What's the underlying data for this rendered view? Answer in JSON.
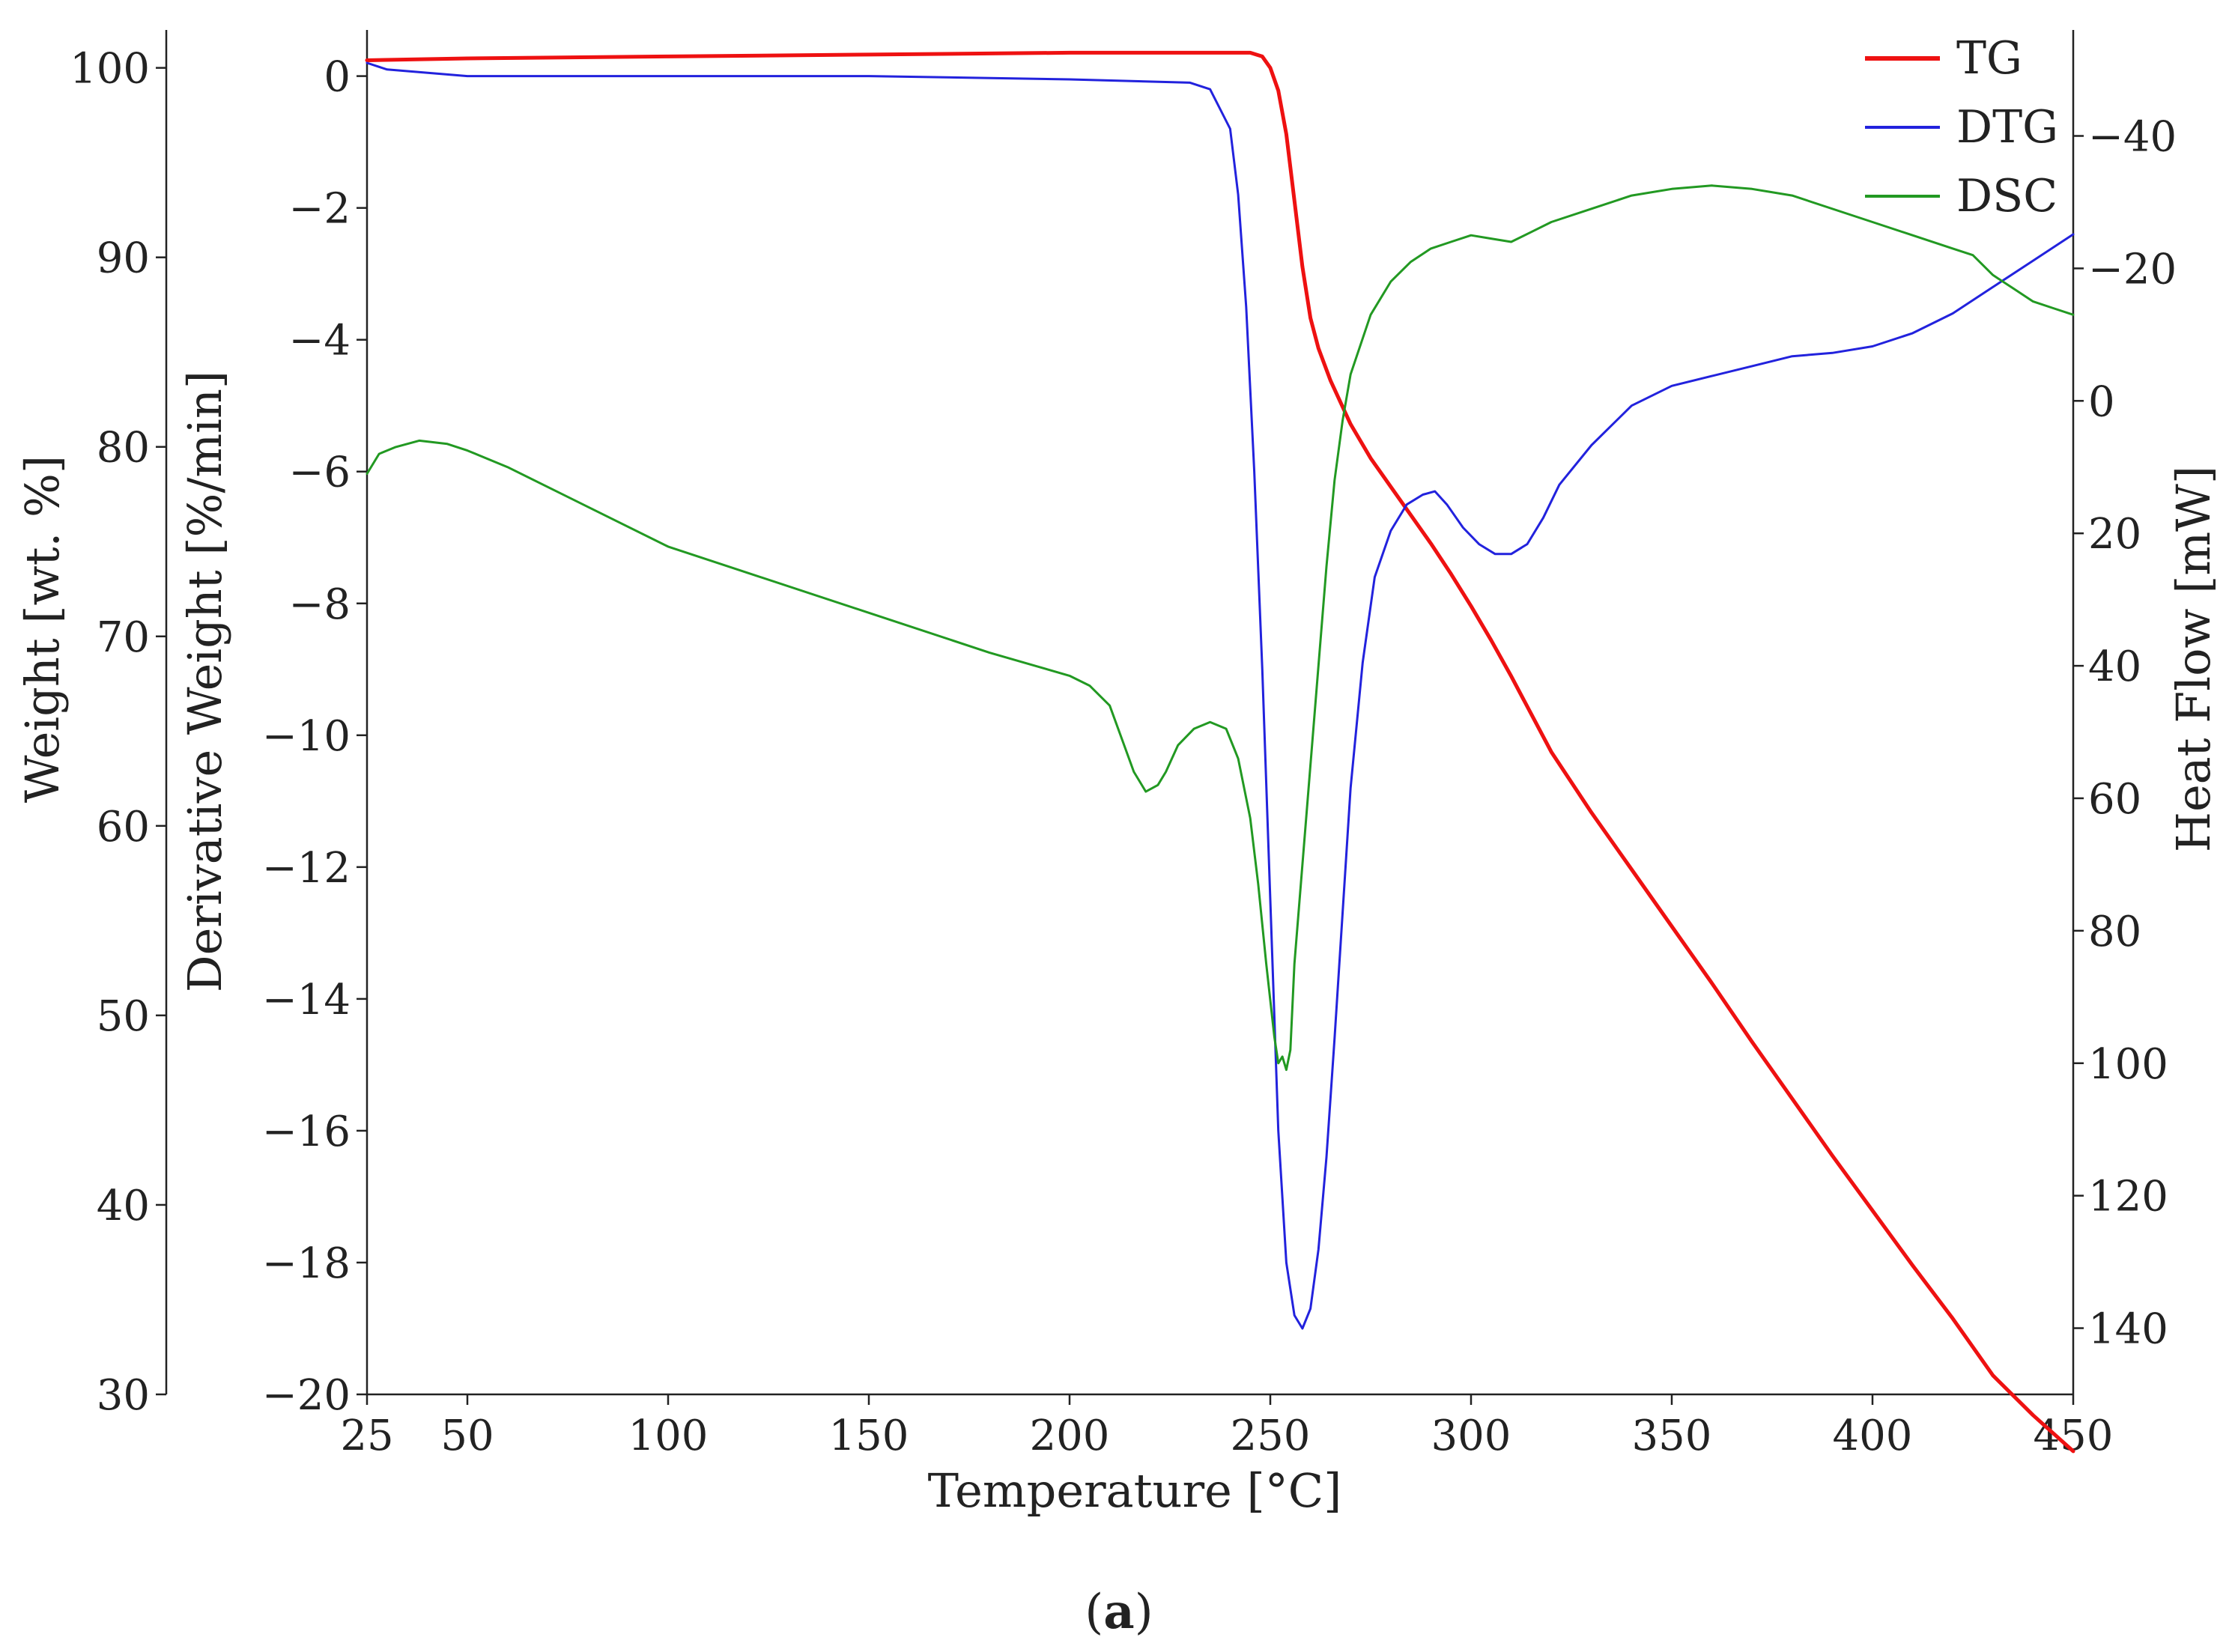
{
  "chart_data": {
    "type": "line",
    "title": "",
    "caption": {
      "open": "(",
      "letter": "a",
      "close": ")"
    },
    "xlabel": "Temperature [°C]",
    "xlim": [
      25,
      450
    ],
    "xticks": [
      25,
      50,
      100,
      150,
      200,
      250,
      300,
      350,
      400,
      450
    ],
    "axes": {
      "weight": {
        "label": "Weight [wt. %]",
        "range": [
          30,
          102
        ],
        "ticks": [
          30,
          40,
          50,
          60,
          70,
          80,
          90,
          100
        ]
      },
      "derivative": {
        "label": "Derivative Weight [%/min]",
        "range": [
          -20,
          0.7
        ],
        "ticks": [
          0,
          -2,
          -4,
          -6,
          -8,
          -10,
          -12,
          -14,
          -16,
          -18,
          -20
        ],
        "tick_labels": [
          "0",
          "−2",
          "−4",
          "−6",
          "−8",
          "−10",
          "−12",
          "−14",
          "−16",
          "−18",
          "−20"
        ]
      },
      "heatflow": {
        "label": "Heat Flow [mW]",
        "range": [
          -56,
          150
        ],
        "inverted": true,
        "ticks": [
          -40,
          -20,
          0,
          20,
          40,
          60,
          80,
          100,
          120,
          140
        ],
        "tick_labels": [
          "−40",
          "−20",
          "0",
          "20",
          "40",
          "60",
          "80",
          "100",
          "120",
          "140"
        ]
      }
    },
    "legend": {
      "position": "top-right"
    },
    "series": [
      {
        "name": "TG",
        "axis": "weight",
        "color": "#ee1111",
        "width": 5,
        "x": [
          25,
          50,
          100,
          150,
          200,
          240,
          245,
          248,
          250,
          252,
          254,
          256,
          258,
          260,
          262,
          265,
          270,
          275,
          280,
          285,
          290,
          295,
          300,
          305,
          310,
          320,
          330,
          340,
          350,
          360,
          370,
          380,
          390,
          400,
          410,
          420,
          430,
          440,
          450
        ],
        "y": [
          100.4,
          100.5,
          100.6,
          100.7,
          100.8,
          100.8,
          100.8,
          100.6,
          100.0,
          98.8,
          96.5,
          93.0,
          89.5,
          86.8,
          85.2,
          83.5,
          81.2,
          79.4,
          77.9,
          76.4,
          74.9,
          73.3,
          71.6,
          69.8,
          67.9,
          63.9,
          60.7,
          57.7,
          54.7,
          51.7,
          48.6,
          45.6,
          42.6,
          39.7,
          36.8,
          34.0,
          31.0,
          28.9,
          27.0
        ]
      },
      {
        "name": "DTG",
        "axis": "derivative",
        "color": "#2222dd",
        "width": 3,
        "x": [
          25,
          30,
          50,
          100,
          150,
          200,
          230,
          235,
          240,
          242,
          244,
          246,
          248,
          250,
          252,
          254,
          256,
          258,
          260,
          262,
          264,
          266,
          268,
          270,
          273,
          276,
          280,
          284,
          288,
          291,
          294,
          298,
          302,
          306,
          310,
          314,
          318,
          322,
          330,
          340,
          350,
          360,
          370,
          380,
          390,
          400,
          410,
          420,
          430,
          440,
          450
        ],
        "y": [
          0.2,
          0.1,
          0.0,
          0.0,
          0.0,
          -0.05,
          -0.1,
          -0.2,
          -0.8,
          -1.8,
          -3.5,
          -6.0,
          -9.0,
          -12.5,
          -16.0,
          -18.0,
          -18.8,
          -19.0,
          -18.7,
          -17.8,
          -16.4,
          -14.6,
          -12.7,
          -10.8,
          -8.9,
          -7.6,
          -6.9,
          -6.5,
          -6.35,
          -6.3,
          -6.5,
          -6.85,
          -7.1,
          -7.25,
          -7.25,
          -7.1,
          -6.7,
          -6.2,
          -5.6,
          -5.0,
          -4.7,
          -4.55,
          -4.4,
          -4.25,
          -4.2,
          -4.1,
          -3.9,
          -3.6,
          -3.2,
          -2.8,
          -2.4
        ]
      },
      {
        "name": "DSC",
        "axis": "heatflow",
        "color": "#229922",
        "width": 3,
        "x": [
          25,
          28,
          32,
          38,
          45,
          50,
          60,
          80,
          100,
          120,
          150,
          180,
          200,
          205,
          210,
          213,
          216,
          219,
          222,
          224,
          227,
          231,
          235,
          239,
          242,
          245,
          247,
          249,
          251,
          252,
          253,
          254,
          255,
          256,
          258,
          260,
          262,
          264,
          266,
          268,
          270,
          275,
          280,
          285,
          290,
          295,
          300,
          305,
          310,
          315,
          320,
          330,
          340,
          350,
          360,
          370,
          380,
          400,
          410,
          420,
          425,
          430,
          435,
          440,
          445,
          450
        ],
        "y": [
          11,
          8,
          7,
          6,
          6.5,
          7.5,
          10,
          16,
          22,
          26,
          32,
          38,
          41.5,
          43,
          46,
          51,
          56,
          59,
          58,
          56,
          52,
          49.5,
          48.5,
          49.5,
          54,
          63,
          73,
          85,
          96,
          100,
          99,
          101,
          98,
          85,
          70,
          55,
          40,
          25,
          12,
          3,
          -4,
          -13,
          -18,
          -21,
          -23,
          -24,
          -25,
          -24.5,
          -24,
          -25.5,
          -27,
          -29,
          -31,
          -32,
          -32.5,
          -32,
          -31,
          -27,
          -25,
          -23,
          -22,
          -19,
          -17,
          -15,
          -14,
          -13
        ]
      }
    ]
  }
}
